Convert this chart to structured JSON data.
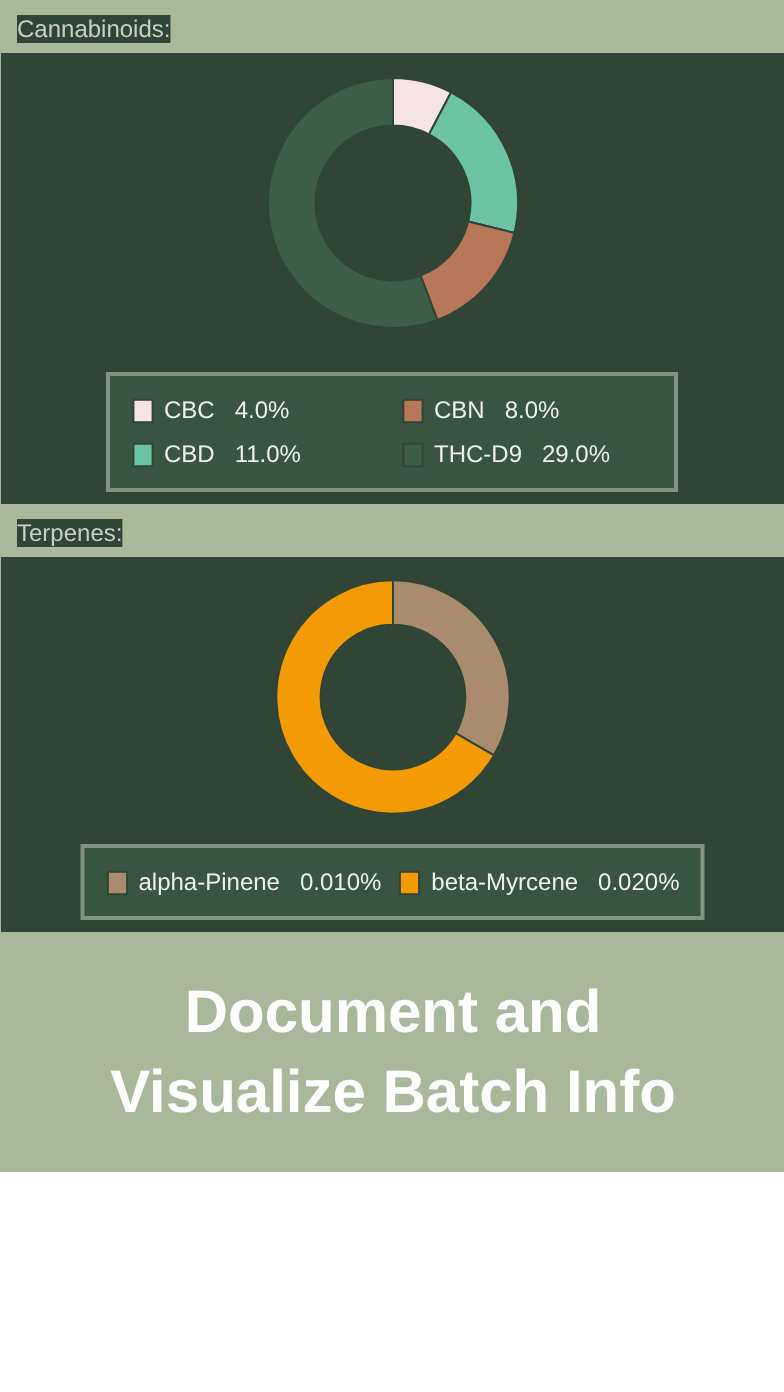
{
  "chart_data": [
    {
      "type": "donut",
      "title": "Cannabinoids:",
      "categories": [
        "CBC",
        "CBD",
        "CBN",
        "THC-D9"
      ],
      "values": [
        4.0,
        11.0,
        8.0,
        29.0
      ],
      "value_labels": [
        "4.0%",
        "11.0%",
        "8.0%",
        "29.0%"
      ],
      "colors": [
        "#f6e3e3",
        "#6cc4a4",
        "#b9775a",
        "#3e5d47"
      ],
      "legend": "bottom"
    },
    {
      "type": "donut",
      "title": "Terpenes:",
      "categories": [
        "alpha-Pinene",
        "beta-Myrcene"
      ],
      "values": [
        0.01,
        0.02
      ],
      "value_labels": [
        "0.010%",
        "0.020%"
      ],
      "colors": [
        "#a98c6d",
        "#f39a05"
      ],
      "legend": "bottom",
      "annotations": [
        "Document and Visualize Batch Info"
      ]
    }
  ]
}
